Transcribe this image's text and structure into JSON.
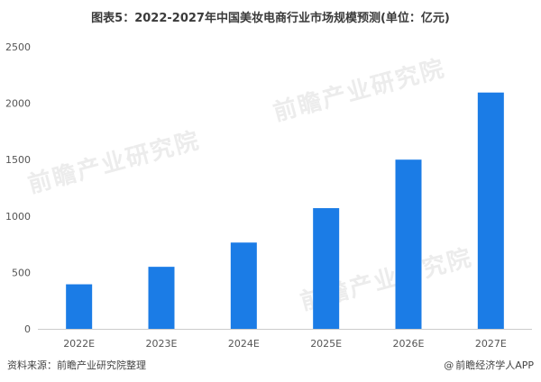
{
  "header": {
    "title": "图表5：2022-2027年中国美妆电商行业市场规模预测(单位：亿元)"
  },
  "chart_data": {
    "type": "bar",
    "title": "图表5：2022-2027年中国美妆电商行业市场规模预测(单位：亿元)",
    "categories": [
      "2022E",
      "2023E",
      "2024E",
      "2025E",
      "2026E",
      "2027E"
    ],
    "values": [
      395,
      550,
      765,
      1070,
      1500,
      2095
    ],
    "yticks": [
      "0",
      "500",
      "1000",
      "1500",
      "2000",
      "2500"
    ],
    "ylim": [
      0,
      2500
    ],
    "xlabel": "",
    "ylabel": "",
    "grid": false,
    "bar_color": "#1b7ce6"
  },
  "footer": {
    "source": "资料来源：前瞻产业研究院整理",
    "credit_symbol": "@",
    "credit": "前瞻经济学人APP"
  },
  "watermark": {
    "text": "前瞻产业研究院"
  }
}
